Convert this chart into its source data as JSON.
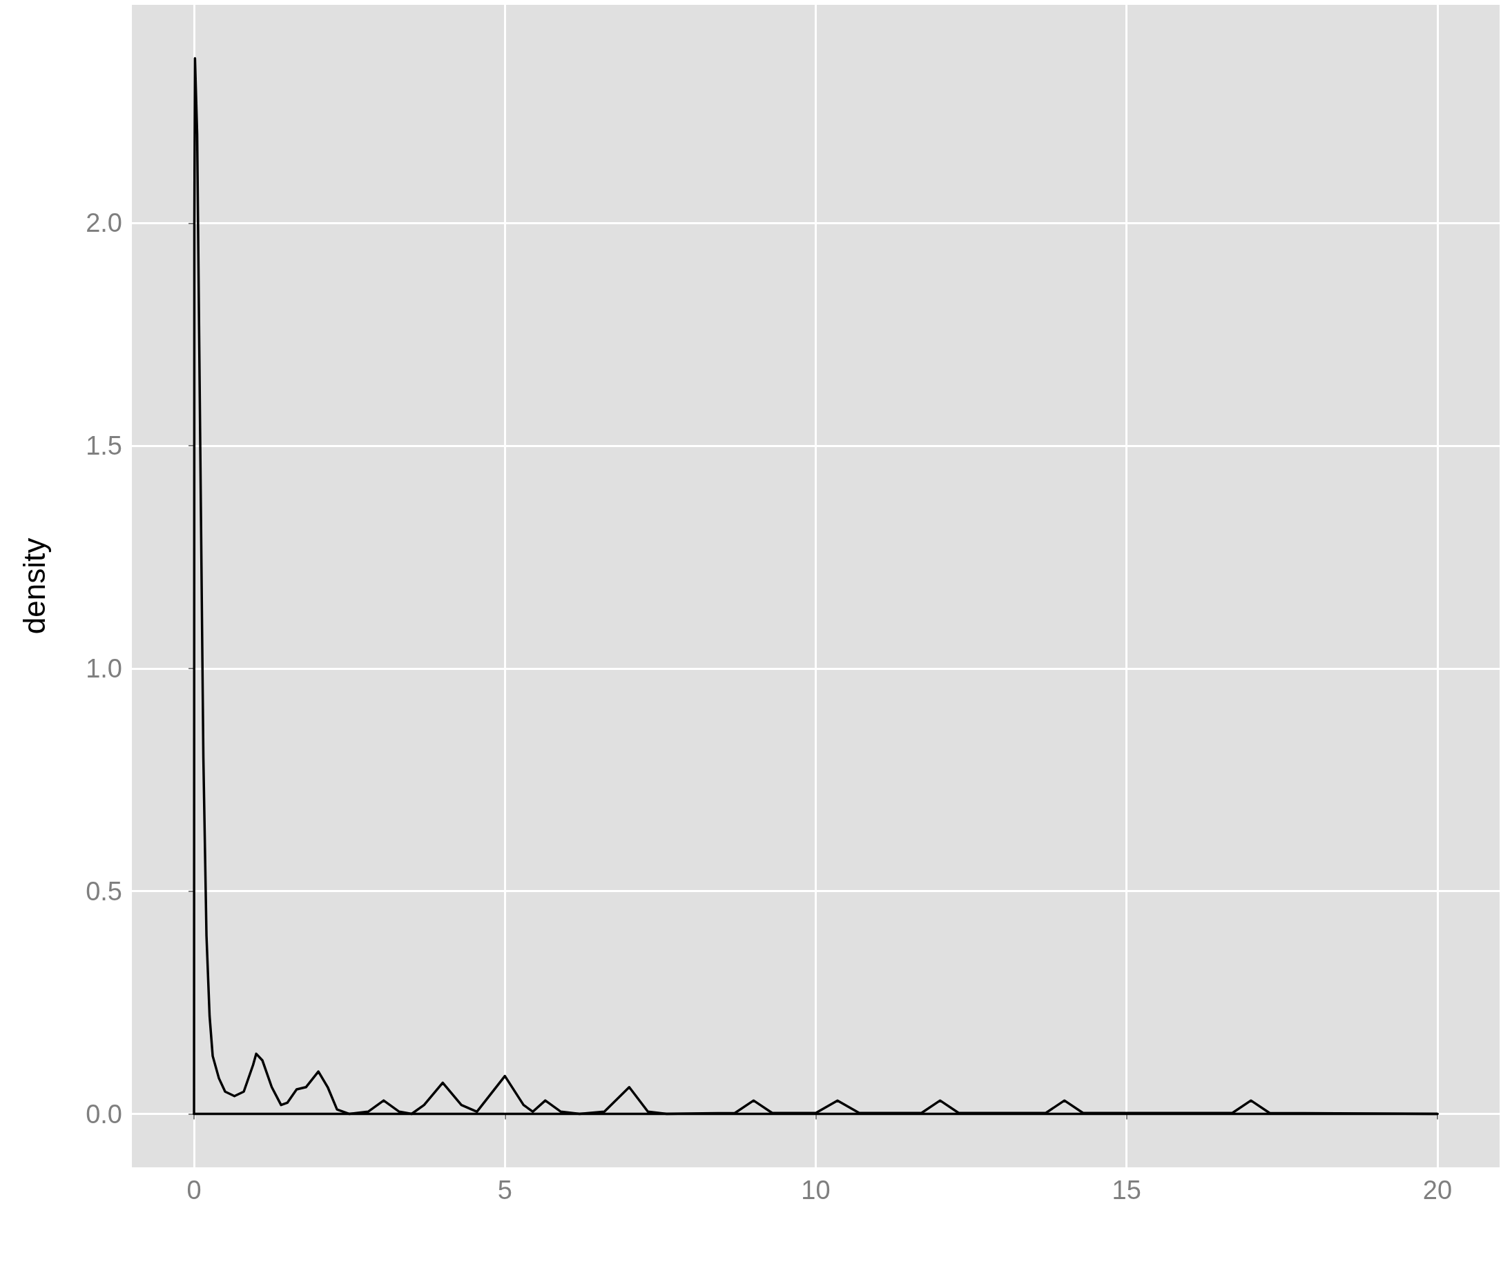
{
  "chart_data": {
    "type": "line",
    "ylabel": "density",
    "series": [
      {
        "color": "#000000",
        "x": [
          0,
          0.005,
          0.015,
          0.05,
          0.1,
          0.15,
          0.2,
          0.25,
          0.3,
          0.4,
          0.5,
          0.65,
          0.8,
          0.95,
          1.0,
          1.1,
          1.25,
          1.4,
          1.5,
          1.65,
          1.8,
          2.0,
          2.15,
          2.3,
          2.5,
          2.8,
          3.05,
          3.3,
          3.5,
          3.7,
          4.0,
          4.3,
          4.55,
          5.0,
          5.3,
          5.45,
          5.65,
          5.9,
          6.2,
          6.6,
          7.0,
          7.3,
          7.6,
          8.7,
          9.0,
          9.3,
          10.0,
          10.35,
          10.7,
          11.7,
          12.0,
          12.3,
          13.7,
          14.0,
          14.3,
          16.7,
          17.0,
          17.3,
          20
        ],
        "values": [
          0,
          2.0,
          2.37,
          2.2,
          1.5,
          0.8,
          0.4,
          0.22,
          0.13,
          0.08,
          0.05,
          0.04,
          0.05,
          0.11,
          0.135,
          0.12,
          0.06,
          0.02,
          0.025,
          0.055,
          0.06,
          0.095,
          0.06,
          0.01,
          0,
          0.005,
          0.03,
          0.005,
          0,
          0.02,
          0.07,
          0.02,
          0.005,
          0.085,
          0.02,
          0.005,
          0.03,
          0.005,
          0,
          0.005,
          0.06,
          0.005,
          0,
          0.002,
          0.03,
          0.002,
          0.002,
          0.03,
          0.002,
          0.002,
          0.03,
          0.002,
          0.002,
          0.03,
          0.002,
          0.002,
          0.03,
          0.002,
          0
        ]
      },
      {
        "color": "#000000",
        "x": [
          0,
          20
        ],
        "values": [
          0,
          0
        ]
      }
    ],
    "xlim": [
      -1,
      21
    ],
    "xticks": [
      0,
      5,
      10,
      15,
      20
    ],
    "ylim": [
      -0.12,
      2.49
    ],
    "yticks": [
      {
        "value": 0,
        "label": "0.0"
      },
      {
        "value": 0.5,
        "label": "0.5"
      },
      {
        "value": 1,
        "label": "1.0"
      },
      {
        "value": 1.5,
        "label": "1.5"
      },
      {
        "value": 2,
        "label": "2.0"
      }
    ],
    "grid": true,
    "marker": "none",
    "line_style": "solid"
  }
}
